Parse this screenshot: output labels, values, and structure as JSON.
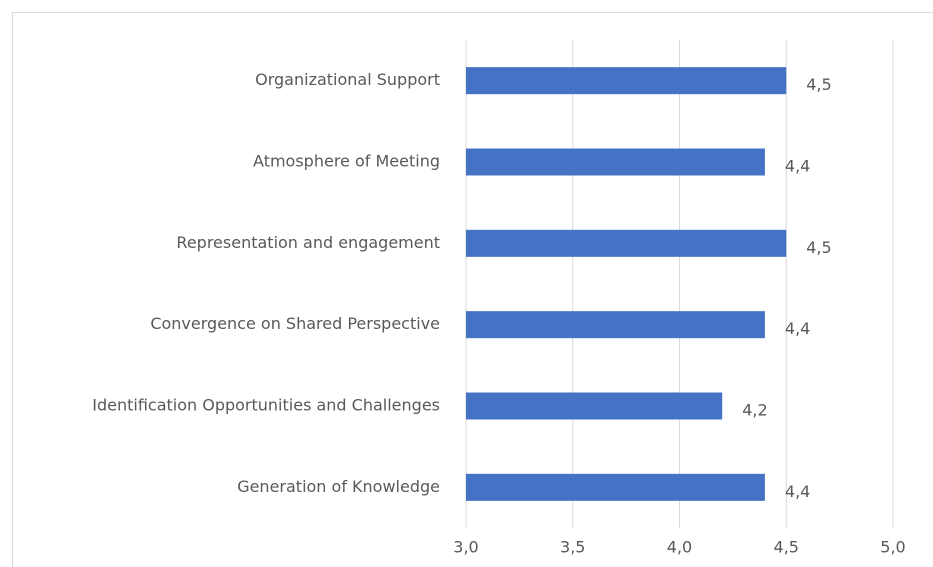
{
  "chart_data": {
    "type": "bar",
    "orientation": "horizontal",
    "categories": [
      "Organizational Support",
      "Atmosphere of Meeting",
      "Representation and engagement",
      "Convergence on Shared Perspective",
      "Identification Opportunities and Challenges",
      "Generation of Knowledge"
    ],
    "values": [
      4.5,
      4.4,
      4.5,
      4.4,
      4.2,
      4.4
    ],
    "value_labels": [
      "4,5",
      "4,4",
      "4,5",
      "4,4",
      "4,2",
      "4,4"
    ],
    "color": "#4472c4",
    "xlim": [
      3,
      5
    ],
    "xticks": [
      {
        "value": 3,
        "label": "3,0"
      },
      {
        "value": 3.5,
        "label": "3,5"
      },
      {
        "value": 4,
        "label": "4,0"
      },
      {
        "value": 4.5,
        "label": "4,5"
      },
      {
        "value": 5,
        "label": "5,0"
      }
    ],
    "grid": true
  }
}
